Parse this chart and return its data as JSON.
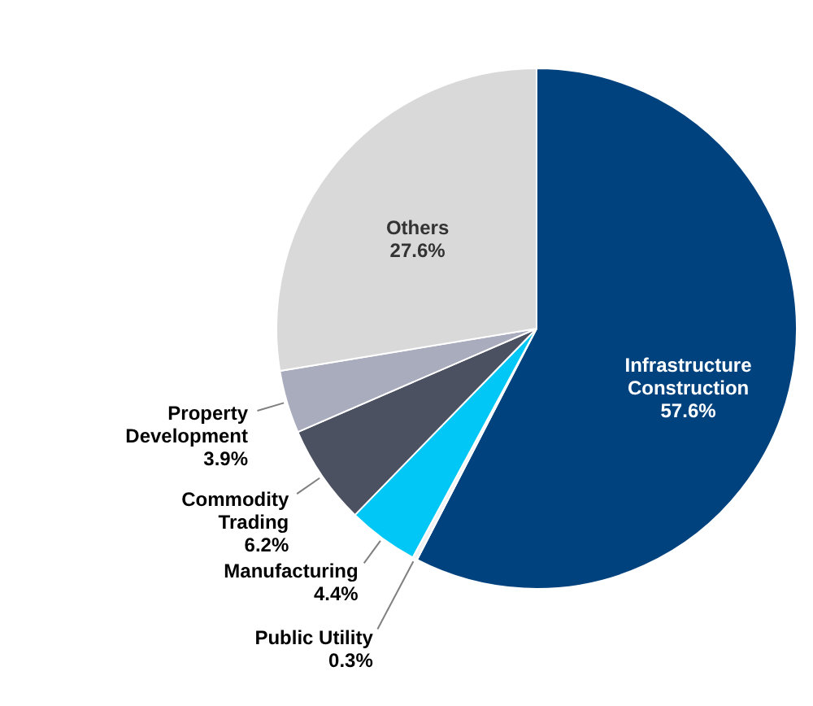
{
  "chart_data": {
    "type": "pie",
    "categories": [
      "Infrastructure Construction",
      "Public Utility",
      "Manufacturing",
      "Commodity Trading",
      "Property Development",
      "Others"
    ],
    "values": [
      57.6,
      0.3,
      4.4,
      6.2,
      3.9,
      27.6
    ],
    "colors": [
      "#00427e",
      "#f2f2f2",
      "#00c7f5",
      "#4c5161",
      "#a8acbd",
      "#d9d9d9"
    ],
    "value_labels": [
      "57.6%",
      "0.3%",
      "4.4%",
      "6.2%",
      "3.9%",
      "27.6%"
    ]
  }
}
